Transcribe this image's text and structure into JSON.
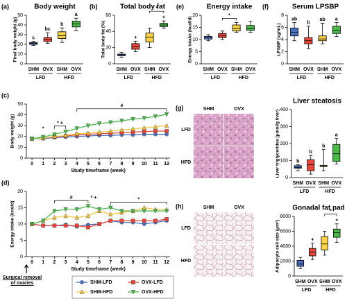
{
  "chart_data": [
    {
      "type": "box",
      "panel": "(a)",
      "title": "Body weight",
      "ylabel": "Final body weight (g)",
      "categories": [
        "SHM",
        "OVX",
        "SHM",
        "OVX"
      ],
      "colors": [
        "#4a6fc0",
        "#e8483c",
        "#f7d24a",
        "#4cb84c"
      ],
      "groups": [
        {
          "label": "LFD",
          "span": [
            0,
            1
          ]
        },
        {
          "label": "HFD",
          "span": [
            2,
            3
          ]
        }
      ],
      "boxes": [
        {
          "min": 19,
          "q1": 20,
          "median": 21,
          "q3": 22,
          "max": 23
        },
        {
          "min": 21,
          "q1": 23,
          "median": 25,
          "q3": 27,
          "max": 32
        },
        {
          "min": 22,
          "q1": 26,
          "median": 29,
          "q3": 33,
          "max": 37
        },
        {
          "min": 34,
          "q1": 38,
          "median": 41,
          "q3": 44,
          "max": 47
        }
      ],
      "labels": [
        "c",
        "bc",
        "b",
        "a"
      ],
      "ylim": [
        0,
        50
      ],
      "yticks": [
        0,
        10,
        20,
        30,
        40,
        50
      ]
    },
    {
      "type": "box",
      "panel": "(b)",
      "title": "Total body fat",
      "ylabel": "Total body fat (%)",
      "categories": [
        "SHM",
        "OVX",
        "SHM",
        "OVX"
      ],
      "colors": [
        "#4a6fc0",
        "#e8483c",
        "#f7d24a",
        "#4cb84c"
      ],
      "groups": [
        {
          "label": "LFD",
          "span": [
            0,
            1
          ]
        },
        {
          "label": "HFD",
          "span": [
            2,
            3
          ]
        }
      ],
      "boxes": [
        {
          "min": 8,
          "q1": 10,
          "median": 11,
          "q3": 12,
          "max": 14
        },
        {
          "min": 15,
          "q1": 18,
          "median": 21,
          "q3": 25,
          "max": 28
        },
        {
          "min": 20,
          "q1": 27,
          "median": 33,
          "q3": 38,
          "max": 44
        },
        {
          "min": 44,
          "q1": 46,
          "median": 48,
          "q3": 50,
          "max": 53
        }
      ],
      "labels": [
        null,
        "+",
        null,
        "+"
      ],
      "brackets": [
        {
          "span": [
            2,
            3
          ],
          "text": "*"
        }
      ],
      "ylim": [
        0,
        60
      ],
      "yticks": [
        0,
        20,
        40,
        60
      ]
    },
    {
      "type": "box",
      "panel": "(e)",
      "title": "Energy intake",
      "ylabel": "Energy intake (kcal/d)",
      "categories": [
        "SHM",
        "OVX",
        "SHM",
        "OVX"
      ],
      "colors": [
        "#4a6fc0",
        "#e8483c",
        "#f7d24a",
        "#4cb84c"
      ],
      "groups": [
        {
          "label": "LFD",
          "span": [
            0,
            1
          ]
        },
        {
          "label": "HFD",
          "span": [
            2,
            3
          ]
        }
      ],
      "boxes": [
        {
          "min": 9.5,
          "q1": 10.2,
          "median": 10.8,
          "q3": 11.3,
          "max": 12
        },
        {
          "min": 10,
          "q1": 10.8,
          "median": 11.5,
          "q3": 12.5,
          "max": 13.5
        },
        {
          "min": 13,
          "q1": 13.5,
          "median": 14.5,
          "q3": 16,
          "max": 17
        },
        {
          "min": 13,
          "q1": 13.8,
          "median": 14.5,
          "q3": 15.8,
          "max": 17.5
        }
      ],
      "brackets": [
        {
          "span": [
            1,
            2
          ],
          "text": "*"
        }
      ],
      "ylim": [
        0,
        20
      ],
      "yticks": [
        0,
        5,
        10,
        15,
        20
      ]
    },
    {
      "type": "box",
      "panel": "(f)",
      "title": "Serum LPSBP",
      "ylabel": "LPSBP (ug/mL)",
      "categories": [
        "SHM",
        "OVX",
        "SHM",
        "OVX"
      ],
      "colors": [
        "#4a6fc0",
        "#e8483c",
        "#f7d24a",
        "#4cb84c"
      ],
      "groups": [
        {
          "label": "LFD",
          "span": [
            0,
            1
          ]
        },
        {
          "label": "HFD",
          "span": [
            2,
            3
          ]
        }
      ],
      "boxes": [
        {
          "min": 3.8,
          "q1": 4.6,
          "median": 5.2,
          "q3": 5.9,
          "max": 6.8
        },
        {
          "min": 2.5,
          "q1": 3.3,
          "median": 3.8,
          "q3": 4.3,
          "max": 6.2
        },
        {
          "min": 3.3,
          "q1": 3.8,
          "median": 4.1,
          "q3": 4.6,
          "max": 6.7
        },
        {
          "min": 4.5,
          "q1": 5.0,
          "median": 5.5,
          "q3": 6.2,
          "max": 6.8
        }
      ],
      "labels": [
        "ab",
        "b",
        "ab",
        "a"
      ],
      "ylim": [
        0,
        8
      ],
      "yticks": [
        0,
        2,
        4,
        6,
        8
      ]
    },
    {
      "type": "line",
      "panel": "(c)",
      "ylabel": "Body weight (g)",
      "xlabel": "Study timeframe (week)",
      "x": [
        0,
        1,
        2,
        3,
        4,
        5,
        6,
        7,
        8,
        9,
        10,
        11,
        12
      ],
      "xlim": [
        -0.5,
        12.3
      ],
      "xticks": [
        0,
        1,
        2,
        3,
        4,
        5,
        6,
        7,
        8,
        9,
        10,
        11,
        12
      ],
      "ylim": [
        0,
        50
      ],
      "yticks": [
        0,
        10,
        20,
        30,
        40,
        50
      ],
      "legend": true,
      "series": [
        {
          "name": "SHM-LFD",
          "color": "#4a6fc0",
          "marker": "circle",
          "values": [
            18,
            18,
            19,
            19.5,
            20,
            20.5,
            21,
            21,
            21.5,
            21.5,
            22,
            22,
            22
          ]
        },
        {
          "name": "OVX-LFD",
          "color": "#e8483c",
          "marker": "square",
          "values": [
            18,
            18.5,
            19.5,
            20.5,
            21.5,
            22,
            22.5,
            23,
            23.5,
            24,
            24.5,
            25,
            25
          ]
        },
        {
          "name": "SHM-HFD",
          "color": "#f5c842",
          "marker": "triangle-up",
          "values": [
            18,
            18.5,
            20,
            21,
            22.5,
            23,
            24,
            25,
            26,
            27,
            28,
            29,
            30
          ]
        },
        {
          "name": "OVX-HFD",
          "color": "#4cb84c",
          "marker": "triangle-down",
          "values": [
            18,
            19.5,
            22,
            24.5,
            27.5,
            30,
            32,
            33,
            34.5,
            36,
            37,
            38.5,
            40.5
          ]
        }
      ],
      "annotations": [
        {
          "span": [
            1,
            1
          ],
          "text": "*"
        },
        {
          "span": [
            2,
            3
          ],
          "text": "* +"
        },
        {
          "span": [
            4,
            12
          ],
          "text": "#"
        }
      ]
    },
    {
      "type": "line",
      "panel": "(d)",
      "ylabel": "Energy intake (kcal/d)",
      "xlabel": "Study timeframe (week)",
      "x": [
        0,
        1,
        2,
        3,
        4,
        5,
        6,
        7,
        8,
        9,
        10,
        11,
        12
      ],
      "xlim": [
        -0.5,
        12.3
      ],
      "xticks": [
        0,
        1,
        2,
        3,
        4,
        5,
        6,
        7,
        8,
        9,
        10,
        11,
        12
      ],
      "ylim": [
        0,
        20
      ],
      "yticks": [
        0,
        5,
        10,
        15,
        20
      ],
      "note": "Surgical removal of ovaries",
      "series": [
        {
          "color": "#4a6fc0",
          "marker": "circle",
          "values": [
            10,
            9.5,
            9.5,
            9.8,
            9.2,
            9.8,
            10,
            11,
            10.5,
            10.5,
            10,
            10.5,
            11
          ]
        },
        {
          "color": "#e8483c",
          "marker": "square",
          "values": [
            10,
            9.5,
            9.5,
            9.5,
            9.5,
            9,
            10,
            11,
            11,
            11,
            11,
            11,
            11.5
          ]
        },
        {
          "color": "#f5c842",
          "marker": "triangle-up",
          "values": [
            10,
            11,
            12,
            12.5,
            12,
            12.5,
            14,
            13,
            13.5,
            14,
            15,
            14.5,
            14.5
          ]
        },
        {
          "color": "#4cb84c",
          "marker": "triangle-down",
          "values": [
            10,
            11,
            14,
            14.5,
            14.5,
            15.5,
            14.5,
            15,
            14,
            14,
            14,
            14,
            14
          ]
        }
      ],
      "annotations": [
        {
          "span": [
            2,
            5
          ],
          "text": "#"
        },
        {
          "span": [
            5.5,
            5.5
          ],
          "text": "* +"
        },
        {
          "span": [
            7,
            12
          ],
          "text": "*"
        }
      ]
    },
    {
      "type": "box",
      "title": "Liver steatosis",
      "ylabel": "Liver triglycerides (μmol/g liver)",
      "categories": [
        "SHM",
        "OVX",
        "SHM",
        "OVX"
      ],
      "colors": [
        "#4a6fc0",
        "#e8483c",
        "#f7d24a",
        "#4cb84c"
      ],
      "groups": [
        {
          "label": "LFD",
          "span": [
            0,
            1
          ]
        },
        {
          "label": "HFD",
          "span": [
            2,
            3
          ]
        }
      ],
      "boxes": [
        {
          "min": 40,
          "q1": 55,
          "median": 60,
          "q3": 70,
          "max": 75
        },
        {
          "min": 20,
          "q1": 40,
          "median": 75,
          "q3": 105,
          "max": 130
        },
        {
          "min": 40,
          "q1": 65,
          "median": 68,
          "q3": 72,
          "max": 165
        },
        {
          "min": 80,
          "q1": 95,
          "median": 140,
          "q3": 195,
          "max": 230
        }
      ],
      "labels": [
        "b",
        "b",
        "b",
        "a"
      ],
      "ylim": [
        0,
        400
      ],
      "yticks": [
        0,
        100,
        200,
        300,
        400
      ]
    },
    {
      "type": "box",
      "title": "Gonadal fat pad",
      "ylabel": "Adipocyte cell size (μm²)",
      "categories": [
        "SHM",
        "OVX",
        "SHM",
        "OVX"
      ],
      "colors": [
        "#4a6fc0",
        "#e8483c",
        "#f7d24a",
        "#4cb84c"
      ],
      "groups": [
        {
          "label": "LFD",
          "span": [
            0,
            1
          ]
        },
        {
          "label": "HFD",
          "span": [
            2,
            3
          ]
        }
      ],
      "boxes": [
        {
          "min": 1000,
          "q1": 1300,
          "median": 1600,
          "q3": 2100,
          "max": 2500
        },
        {
          "min": 2200,
          "q1": 2700,
          "median": 3200,
          "q3": 3700,
          "max": 4400
        },
        {
          "min": 2800,
          "q1": 3500,
          "median": 4300,
          "q3": 5300,
          "max": 6000
        },
        {
          "min": 4500,
          "q1": 5200,
          "median": 5800,
          "q3": 6300,
          "max": 7000
        }
      ],
      "labels": [
        null,
        "+",
        null,
        "+"
      ],
      "brackets": [
        {
          "span": [
            2,
            3
          ],
          "text": "*"
        }
      ],
      "ylim": [
        0,
        8000
      ],
      "yticks": [
        0,
        2000,
        4000,
        6000,
        8000
      ]
    }
  ],
  "micrographs": [
    {
      "panel": "(g)",
      "columns": [
        "SHM",
        "OVX"
      ],
      "rows": [
        "LFD",
        "HFD"
      ]
    },
    {
      "panel": "(h)",
      "columns": [
        "SHM",
        "OVX"
      ],
      "rows": [
        "LFD",
        "HFD"
      ]
    }
  ]
}
